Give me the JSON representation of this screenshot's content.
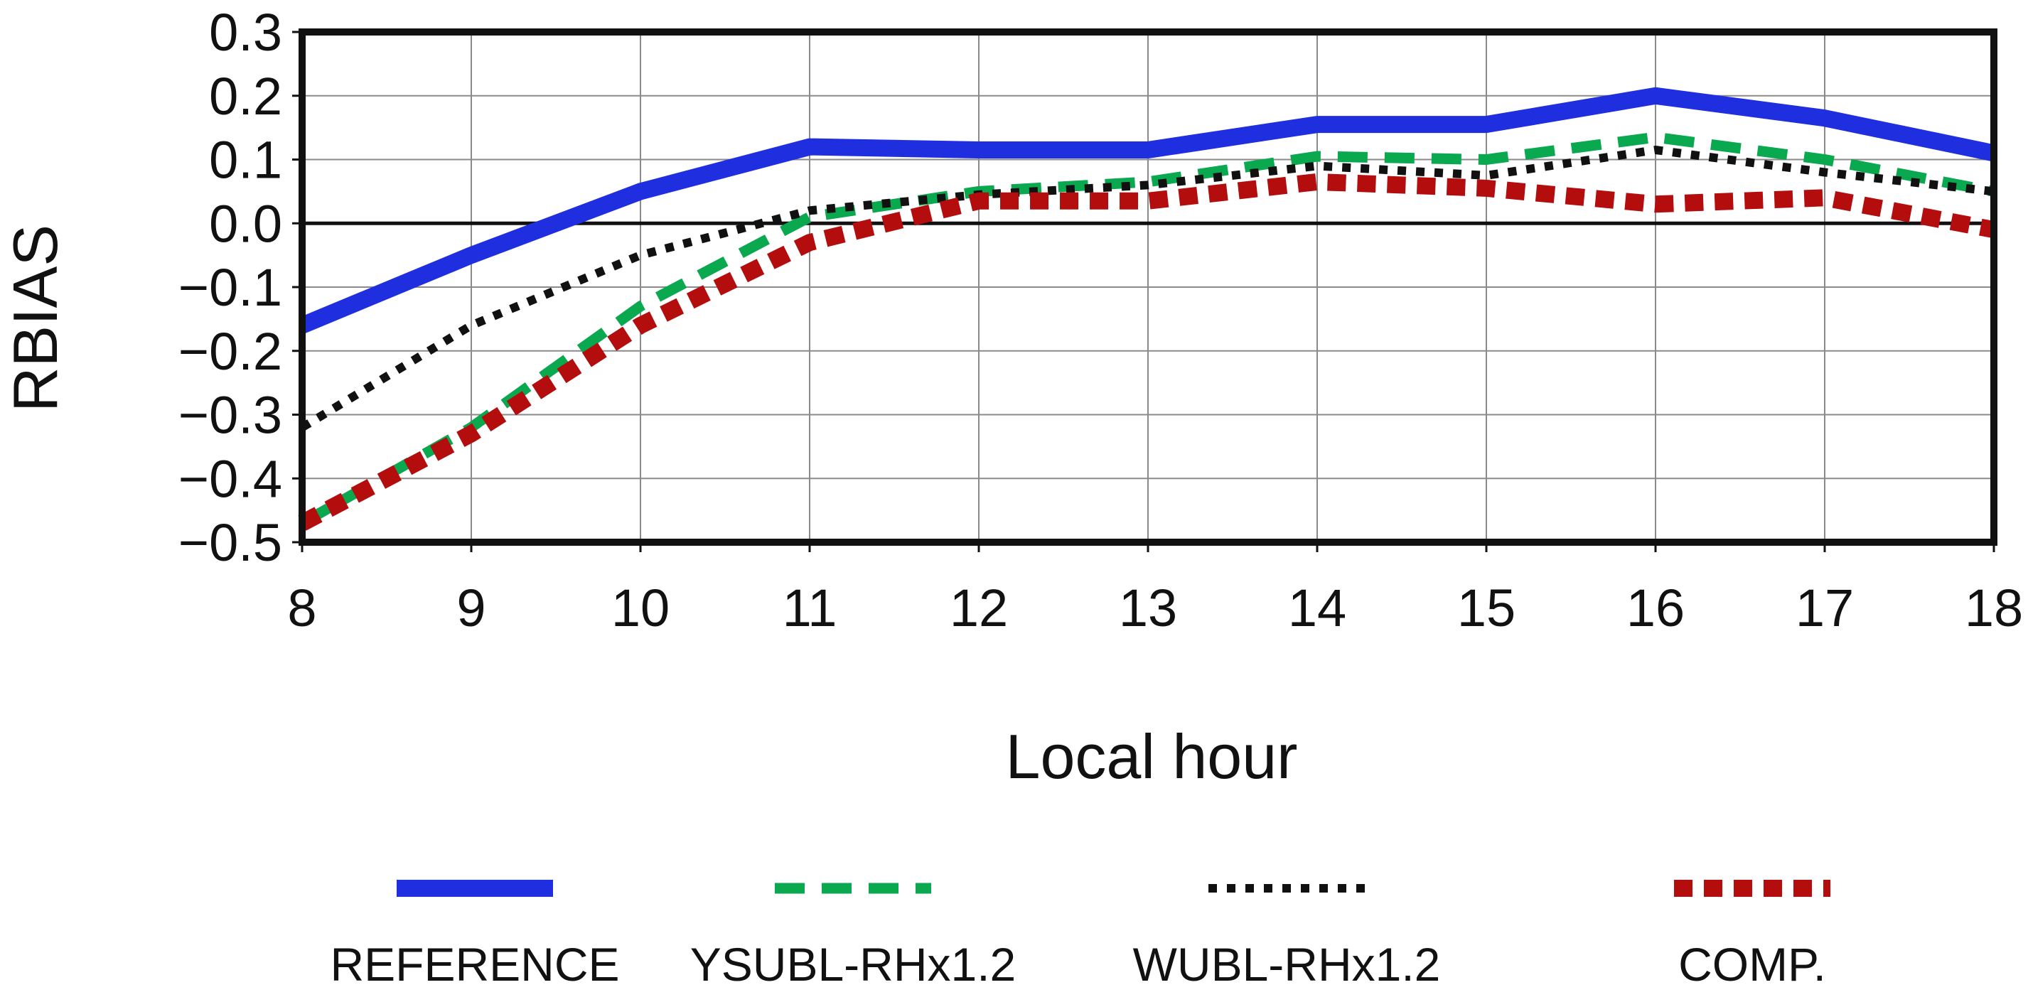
{
  "chart_data": {
    "type": "line",
    "title": "",
    "xlabel": "Local hour",
    "ylabel": "RBIAS",
    "x": [
      8,
      9,
      10,
      11,
      12,
      13,
      14,
      15,
      16,
      17,
      18
    ],
    "xlim": [
      8,
      18
    ],
    "ylim": [
      -0.5,
      0.3
    ],
    "x_ticks": [
      "8",
      "9",
      "10",
      "11",
      "12",
      "13",
      "14",
      "15",
      "16",
      "17",
      "18"
    ],
    "y_ticks": [
      "0.3",
      "0.2",
      "0.1",
      "0.0",
      "-0.1",
      "-0.2",
      "-0.3",
      "-0.4",
      "-0.5"
    ],
    "grid": true,
    "zero_line": true,
    "legend_placement": "bottom",
    "series": [
      {
        "name": "REFERENCE",
        "color": "#1f2fe0",
        "style": "solid",
        "values": [
          -0.16,
          -0.05,
          0.05,
          0.12,
          0.115,
          0.115,
          0.155,
          0.155,
          0.2,
          0.165,
          0.11
        ]
      },
      {
        "name": "YSUBL-RHx1.2",
        "color": "#0aa84f",
        "style": "dashed",
        "values": [
          -0.47,
          -0.32,
          -0.13,
          0.01,
          0.05,
          0.065,
          0.105,
          0.1,
          0.135,
          0.1,
          0.05
        ]
      },
      {
        "name": "WUBL-RHx1.2",
        "color": "#111111",
        "style": "dotted",
        "values": [
          -0.32,
          -0.16,
          -0.05,
          0.02,
          0.045,
          0.06,
          0.09,
          0.075,
          0.115,
          0.08,
          0.05
        ]
      },
      {
        "name": "COMP.",
        "color": "#b40d0d",
        "style": "dashed-thick",
        "values": [
          -0.47,
          -0.33,
          -0.16,
          -0.03,
          0.035,
          0.035,
          0.065,
          0.055,
          0.03,
          0.04,
          -0.01
        ]
      }
    ]
  }
}
